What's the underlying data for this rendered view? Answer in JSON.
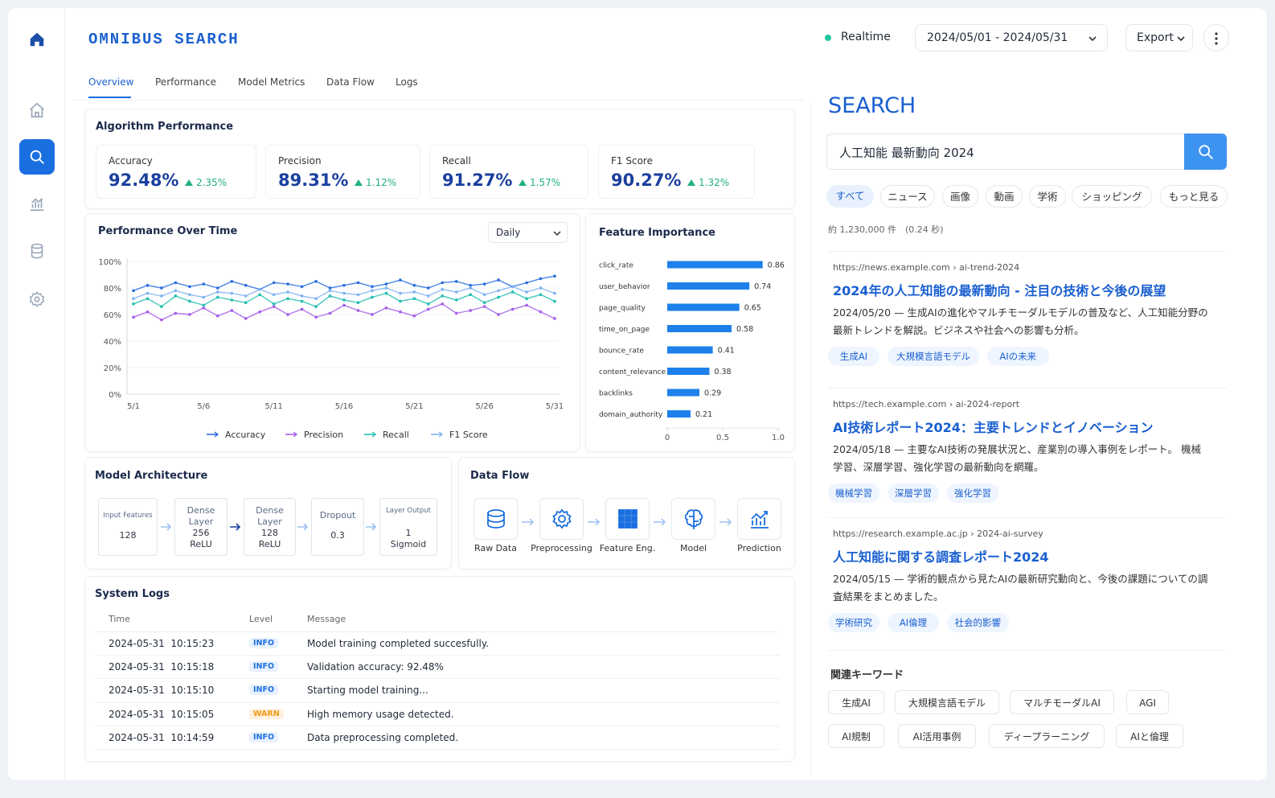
{
  "header": {
    "brand": "OMNIBUS SEARCH",
    "status": "Realtime",
    "date_range": "2024/05/01 - 2024/05/31",
    "export": "Export"
  },
  "tabs": [
    "Overview",
    "Performance",
    "Model Metrics",
    "Data Flow",
    "Logs"
  ],
  "algorithm_performance": {
    "title": "Algorithm Performance",
    "cards": [
      {
        "label": "Accuracy",
        "value": "92.48%",
        "change": "2.35%"
      },
      {
        "label": "Precision",
        "value": "89.31%",
        "change": "1.12%"
      },
      {
        "label": "Recall",
        "value": "91.27%",
        "change": "1.57%"
      },
      {
        "label": "F1 Score",
        "value": "90.27%",
        "change": "1.32%"
      }
    ]
  },
  "performance_period": "Daily",
  "chart_data": [
    {
      "type": "line",
      "title": "Performance Over Time",
      "categories": [
        "5/1",
        null,
        null,
        null,
        null,
        "5/6",
        null,
        null,
        null,
        null,
        "5/11",
        null,
        null,
        null,
        null,
        "5/16",
        null,
        null,
        null,
        null,
        "5/21",
        null,
        null,
        null,
        null,
        "5/26",
        null,
        null,
        null,
        null,
        "5/31"
      ],
      "series": [
        {
          "name": "Accuracy",
          "color": "#2b6fe0",
          "values": [
            78,
            82,
            80,
            84,
            81,
            83,
            80,
            85,
            82,
            79,
            84,
            83,
            81,
            85,
            80,
            82,
            84,
            81,
            83,
            86,
            82,
            80,
            84,
            85,
            82,
            83,
            86,
            81,
            84,
            87,
            89
          ]
        },
        {
          "name": "Precision",
          "color": "#a65ee8",
          "values": [
            58,
            62,
            56,
            61,
            60,
            65,
            59,
            63,
            57,
            62,
            66,
            60,
            64,
            58,
            61,
            67,
            63,
            60,
            65,
            62,
            59,
            64,
            68,
            61,
            63,
            66,
            60,
            64,
            67,
            62,
            57
          ]
        },
        {
          "name": "Recall",
          "color": "#22bfb0",
          "values": [
            68,
            72,
            66,
            74,
            70,
            67,
            73,
            71,
            69,
            75,
            68,
            72,
            70,
            66,
            74,
            71,
            69,
            73,
            76,
            70,
            72,
            68,
            74,
            71,
            75,
            69,
            73,
            77,
            72,
            75,
            70
          ]
        },
        {
          "name": "F1 Score",
          "color": "#7fb2f0",
          "values": [
            72,
            76,
            74,
            78,
            75,
            73,
            77,
            76,
            74,
            79,
            75,
            77,
            74,
            72,
            78,
            76,
            75,
            78,
            80,
            76,
            77,
            74,
            79,
            77,
            80,
            75,
            78,
            81,
            77,
            80,
            76
          ]
        }
      ],
      "ylim": [
        0,
        100
      ],
      "yticks": [
        {
          "value": 0,
          "label": "0%"
        },
        {
          "value": 20,
          "label": "20%"
        },
        {
          "value": 40,
          "label": "40%"
        },
        {
          "value": 60,
          "label": "60%"
        },
        {
          "value": 80,
          "label": "80%"
        },
        {
          "value": 100,
          "label": "100%"
        }
      ],
      "grid": true
    },
    {
      "type": "bar",
      "orientation": "horizontal",
      "title": "Feature Importance",
      "categories": [
        "click_rate",
        "user_behavior",
        "page_quality",
        "time_on_page",
        "bounce_rate",
        "content_relevance",
        "backlinks",
        "domain_authority"
      ],
      "values": [
        0.86,
        0.74,
        0.65,
        0.58,
        0.41,
        0.38,
        0.29,
        0.21
      ],
      "color": "#1e80ea",
      "xlim": [
        0,
        1
      ],
      "xticks": [
        0,
        0.5,
        {
          "value": 1,
          "label": "1.0"
        }
      ]
    }
  ],
  "model_architecture": {
    "title": "Model Architecture",
    "layers": [
      {
        "name": "Input Features",
        "lines": [
          "128"
        ]
      },
      {
        "name": "Dense Layer",
        "lines": [
          "256",
          "ReLU"
        ]
      },
      {
        "name": "Dense Layer",
        "lines": [
          "128",
          "ReLU"
        ]
      },
      {
        "name": "Dropout",
        "lines": [
          "0.3"
        ]
      },
      {
        "name": "Layer Output",
        "lines": [
          "1",
          "Sigmoid"
        ]
      }
    ]
  },
  "data_flow": {
    "title": "Data Flow",
    "steps": [
      "Raw Data",
      "Preprocessing",
      "Feature Eng.",
      "Model",
      "Prediction"
    ]
  },
  "system_logs": {
    "title": "System Logs",
    "columns": [
      "Time",
      "Level",
      "Message"
    ],
    "rows": [
      [
        "2024-05-31  10:15:23",
        "INFO",
        "Model training completed succesfully."
      ],
      [
        "2024-05-31  10:15:18",
        "INFO",
        "Validation accuracy: 92.48%"
      ],
      [
        "2024-05-31  10:15:10",
        "INFO",
        "Starting model training..."
      ],
      [
        "2024-05-31  10:15:05",
        "WARN",
        "High memory usage detected."
      ],
      [
        "2024-05-31  10:14:59",
        "INFO",
        "Data preprocessing completed."
      ]
    ]
  },
  "search": {
    "title": "SEARCH",
    "query": "人工知能 最新動向 2024",
    "filters": [
      "すべて",
      "ニュース",
      "画像",
      "動画",
      "学術",
      "ショッピング",
      "もっと見る"
    ],
    "result_count": "約 1,230,000 件　(0.24 秒)",
    "results": [
      {
        "url": "https://news.example.com › ai-trend-2024",
        "title": "2024年の人工知能の最新動向 - 注目の技術と今後の展望",
        "snippet": "2024/05/20 — 生成AIの進化やマルチモーダルモデルの普及など、人工知能分野の最新トレンドを解説。ビジネスや社会への影響も分析。",
        "tags": [
          "生成AI",
          "大規模言語モデル",
          "AIの未来"
        ]
      },
      {
        "url": "https://tech.example.com › ai-2024-report",
        "title": "AI技術レポート2024：主要トレンドとイノベーション",
        "snippet": "2024/05/18 — 主要なAI技術の発展状況と、産業別の導入事例をレポート。 機械学習、深層学習、強化学習の最新動向を網羅。",
        "tags": [
          "機械学習",
          "深層学習",
          "強化学習"
        ]
      },
      {
        "url": "https://research.example.ac.jp › 2024-ai-survey",
        "title": "人工知能に関する調査レポート2024",
        "snippet": "2024/05/15 — 学術的観点から見たAIの最新研究動向と、今後の課題についての調査結果をまとめました。",
        "tags": [
          "学術研究",
          "AI倫理",
          "社会的影響"
        ]
      }
    ],
    "related_title": "関連キーワード",
    "related": [
      "生成AI",
      "大規模言語モデル",
      "マルチモーダルAI",
      "AGI",
      "AI規制",
      "AI活用事例",
      "ディープラーニング",
      "AIと倫理"
    ]
  }
}
